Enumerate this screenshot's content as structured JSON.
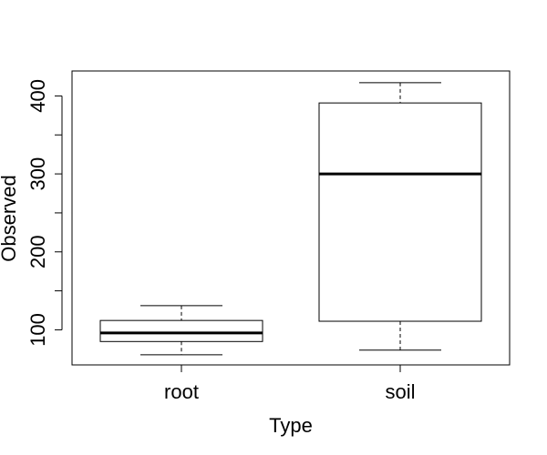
{
  "chart_data": {
    "type": "boxplot",
    "title": "",
    "xlabel": "Type",
    "ylabel": "Observed",
    "ylim": [
      55,
      432
    ],
    "yticks": [
      100,
      200,
      300,
      400
    ],
    "ytick_labels": [
      "100",
      "200",
      "300",
      "400"
    ],
    "yminor_ticks": [
      150,
      250,
      350
    ],
    "categories": [
      "root",
      "soil"
    ],
    "boxes": [
      {
        "name": "root",
        "whisker_low": 68,
        "q1": 85,
        "median": 96,
        "q3": 112,
        "whisker_high": 131
      },
      {
        "name": "soil",
        "whisker_low": 74,
        "q1": 111,
        "median": 300,
        "q3": 391,
        "whisker_high": 417
      }
    ],
    "grid": false
  }
}
